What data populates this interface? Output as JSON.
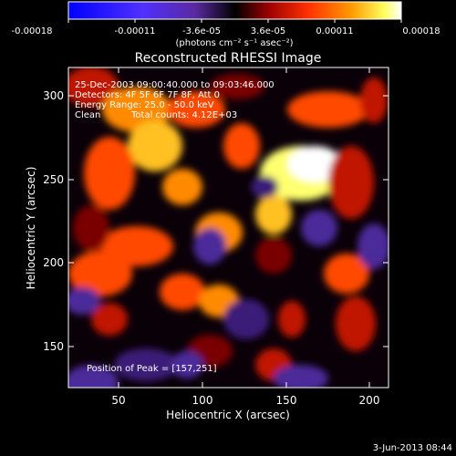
{
  "colorbar": {
    "ticks": [
      "-0.00018",
      "-0.00011",
      "-3.6e-05",
      "3.6e-05",
      "0.00011",
      "0.00018"
    ],
    "units": "(photons cm⁻² s⁻¹ asec⁻²)"
  },
  "title": "Reconstructed RHESSI Image",
  "info": {
    "line1": "25-Dec-2003 09:00:40.000 to 09:03:46.000",
    "line2": "Detectors: 4F 5F 6F 7F 8F, Att 0",
    "line3": "Energy Range: 25.0 - 50.0 keV",
    "line4_method": "Clean",
    "line4_counts": "Total counts: 4.12E+03",
    "peak": "Position of Peak = [157,251]"
  },
  "axes": {
    "xlabel": "Heliocentric X (arcsec)",
    "ylabel": "Heliocentric Y (arcsec)",
    "xlim": [
      20,
      212
    ],
    "ylim": [
      125,
      320
    ],
    "xticks": [
      50,
      100,
      150,
      200
    ],
    "yticks": [
      150,
      200,
      250,
      300
    ]
  },
  "timestamp": "3-Jun-2013 08:44",
  "colors": {
    "background": "#000000",
    "text": "#ffffff",
    "colormap": [
      "#0000ff",
      "#3c3cff",
      "#4b2a9a",
      "#000000",
      "#8a0000",
      "#ff3000",
      "#ff9900",
      "#ffff66",
      "#ffffff"
    ]
  }
}
